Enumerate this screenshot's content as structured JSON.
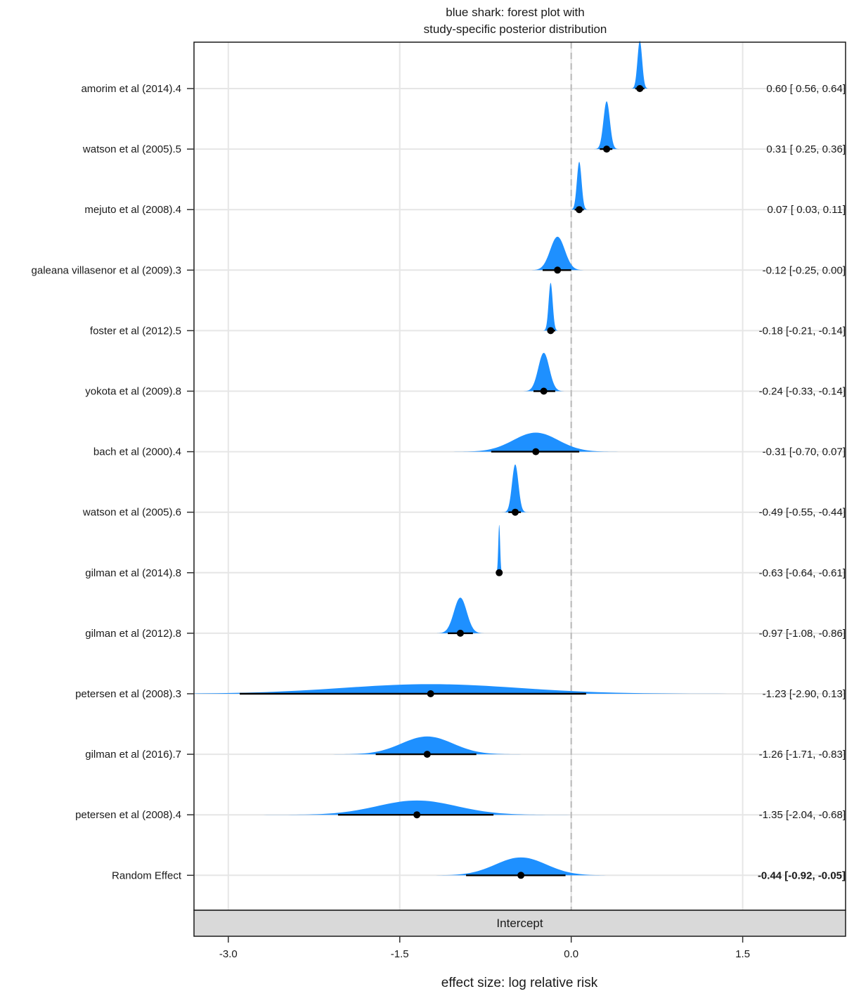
{
  "chart_data": {
    "type": "forest",
    "title": [
      "blue shark: forest plot with",
      "study-specific posterior distribution"
    ],
    "xlabel": "effect size: log relative risk",
    "facet_label": "Intercept",
    "xlim": [
      -3.3,
      2.4
    ],
    "x_ticks": [
      -3.0,
      -1.5,
      0.0,
      1.5
    ],
    "x_tick_labels": [
      "-3.0",
      "-1.5",
      "0.0",
      "1.5"
    ],
    "reference_line": 0.0,
    "grid": true,
    "density_color": "#1E90FF",
    "studies": [
      {
        "label": "amorim et al  (2014).4",
        "mean": 0.6,
        "lower": 0.56,
        "upper": 0.64,
        "ci_text": "0.60 [ 0.56,  0.64]"
      },
      {
        "label": "watson et al (2005).5",
        "mean": 0.31,
        "lower": 0.25,
        "upper": 0.36,
        "ci_text": "0.31 [ 0.25,  0.36]"
      },
      {
        "label": "mejuto et al (2008).4",
        "mean": 0.07,
        "lower": 0.03,
        "upper": 0.11,
        "ci_text": "0.07 [ 0.03,  0.11]"
      },
      {
        "label": "galeana villasenor et al (2009).3",
        "mean": -0.12,
        "lower": -0.25,
        "upper": 0.0,
        "ci_text": "-0.12 [-0.25,  0.00]"
      },
      {
        "label": "foster et al (2012).5",
        "mean": -0.18,
        "lower": -0.21,
        "upper": -0.14,
        "ci_text": "-0.18 [-0.21, -0.14]"
      },
      {
        "label": "yokota et al (2009).8",
        "mean": -0.24,
        "lower": -0.33,
        "upper": -0.14,
        "ci_text": "-0.24 [-0.33, -0.14]"
      },
      {
        "label": "bach et al (2000).4",
        "mean": -0.31,
        "lower": -0.7,
        "upper": 0.07,
        "ci_text": "-0.31 [-0.70,  0.07]"
      },
      {
        "label": "watson et al (2005).6",
        "mean": -0.49,
        "lower": -0.55,
        "upper": -0.44,
        "ci_text": "-0.49 [-0.55, -0.44]"
      },
      {
        "label": "gilman et al (2014).8",
        "mean": -0.63,
        "lower": -0.64,
        "upper": -0.61,
        "ci_text": "-0.63 [-0.64, -0.61]"
      },
      {
        "label": "gilman et al (2012).8",
        "mean": -0.97,
        "lower": -1.08,
        "upper": -0.86,
        "ci_text": "-0.97 [-1.08, -0.86]"
      },
      {
        "label": "petersen et al (2008).3",
        "mean": -1.23,
        "lower": -2.9,
        "upper": 0.13,
        "ci_text": "-1.23 [-2.90,  0.13]"
      },
      {
        "label": "gilman et al (2016).7",
        "mean": -1.26,
        "lower": -1.71,
        "upper": -0.83,
        "ci_text": "-1.26 [-1.71, -0.83]"
      },
      {
        "label": "petersen et al (2008).4",
        "mean": -1.35,
        "lower": -2.04,
        "upper": -0.68,
        "ci_text": "-1.35 [-2.04, -0.68]"
      },
      {
        "label": "Random Effect",
        "mean": -0.44,
        "lower": -0.92,
        "upper": -0.05,
        "ci_text": "-0.44 [-0.92, -0.05]",
        "bold": true
      }
    ]
  }
}
